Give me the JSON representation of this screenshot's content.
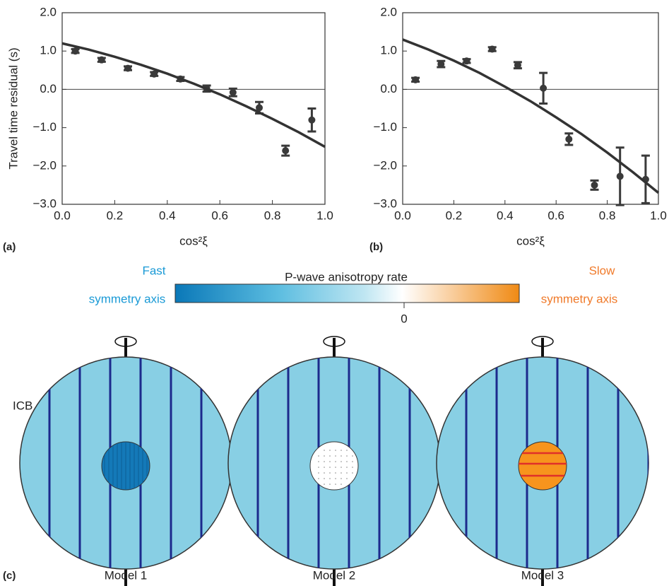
{
  "chart_data": [
    {
      "type": "scatter",
      "panel": "(a)",
      "ylabel": "Travel time residual (s)",
      "xlabel": "cos²ξ",
      "xlim": [
        0,
        1
      ],
      "ylim": [
        -3,
        2
      ],
      "xticks": [
        {
          "value": 0,
          "label": "0.0"
        },
        {
          "value": 0.2,
          "label": "0.2"
        },
        {
          "value": 0.4,
          "label": "0.4"
        },
        {
          "value": 0.6,
          "label": "0.6"
        },
        {
          "value": 0.8,
          "label": "0.8"
        },
        {
          "value": 1,
          "label": "1.0"
        }
      ],
      "yticks": [
        {
          "value": -3,
          "label": "−3.0"
        },
        {
          "value": -2,
          "label": "−2.0"
        },
        {
          "value": -1,
          "label": "−1.0"
        },
        {
          "value": 0,
          "label": "0.0"
        },
        {
          "value": 1,
          "label": "1.0"
        },
        {
          "value": 2,
          "label": "2.0"
        }
      ],
      "series": [
        {
          "kind": "points",
          "color": "#3a3a3a",
          "x": [
            0.05,
            0.15,
            0.25,
            0.35,
            0.45,
            0.55,
            0.65,
            0.75,
            0.85,
            0.95
          ],
          "values": [
            1.0,
            0.77,
            0.55,
            0.4,
            0.27,
            0.02,
            -0.08,
            -0.48,
            -1.6,
            -0.8
          ],
          "errors": [
            0.05,
            0.05,
            0.05,
            0.05,
            0.05,
            0.08,
            0.1,
            0.15,
            0.13,
            0.3
          ]
        },
        {
          "kind": "line",
          "color": "#333333",
          "x": [
            0,
            0.1,
            0.2,
            0.3,
            0.4,
            0.5,
            0.6,
            0.7,
            0.8,
            0.9,
            1
          ],
          "values": [
            1.2,
            1.04,
            0.85,
            0.64,
            0.41,
            0.15,
            -0.13,
            -0.44,
            -0.77,
            -1.12,
            -1.5
          ]
        }
      ]
    },
    {
      "type": "scatter",
      "panel": "(b)",
      "xlabel": "cos²ξ",
      "xlim": [
        0,
        1
      ],
      "ylim": [
        -3,
        2
      ],
      "xticks": [
        {
          "value": 0,
          "label": "0.0"
        },
        {
          "value": 0.2,
          "label": "0.2"
        },
        {
          "value": 0.4,
          "label": "0.4"
        },
        {
          "value": 0.6,
          "label": "0.6"
        },
        {
          "value": 0.8,
          "label": "0.8"
        },
        {
          "value": 1,
          "label": "1.0"
        }
      ],
      "yticks": [
        {
          "value": -3,
          "label": "−3.0"
        },
        {
          "value": -2,
          "label": "−2.0"
        },
        {
          "value": -1,
          "label": "−1.0"
        },
        {
          "value": 0,
          "label": "0.0"
        },
        {
          "value": 1,
          "label": "1.0"
        },
        {
          "value": 2,
          "label": "2.0"
        }
      ],
      "series": [
        {
          "kind": "points",
          "color": "#3a3a3a",
          "x": [
            0.05,
            0.15,
            0.25,
            0.35,
            0.45,
            0.55,
            0.65,
            0.75,
            0.85,
            0.95
          ],
          "values": [
            0.25,
            0.66,
            0.74,
            1.05,
            0.63,
            0.03,
            -1.3,
            -2.5,
            -2.27,
            -2.35
          ],
          "errors": [
            0.05,
            0.08,
            0.05,
            0.05,
            0.08,
            0.4,
            0.15,
            0.12,
            0.75,
            0.62
          ]
        },
        {
          "kind": "line",
          "color": "#333333",
          "x": [
            0,
            0.1,
            0.2,
            0.3,
            0.4,
            0.5,
            0.6,
            0.7,
            0.8,
            0.9,
            1
          ],
          "values": [
            1.3,
            1.04,
            0.75,
            0.43,
            0.07,
            -0.31,
            -0.73,
            -1.17,
            -1.65,
            -2.16,
            -2.7
          ]
        }
      ]
    }
  ],
  "diagram": {
    "panel": "(c)",
    "colorbar": {
      "title": "P-wave anisotropy rate",
      "left_top": "Fast",
      "left_bottom": "symmetry axis",
      "right_top": "Slow",
      "right_bottom": "symmetry axis",
      "zero": "0"
    },
    "icb": "ICB",
    "models": [
      "Model 1",
      "Model 2",
      "Model 3"
    ]
  }
}
